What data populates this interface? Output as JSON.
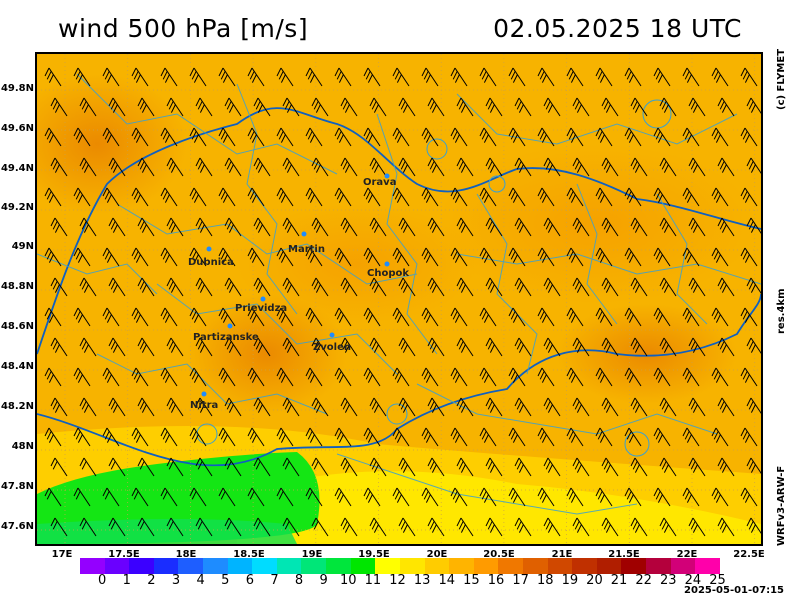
{
  "header": {
    "title": "wind 500 hPa [m/s]",
    "datetime": "02.05.2025   18 UTC"
  },
  "side_labels": {
    "copyright": "(c) FLYMET",
    "resolution": "res.4km",
    "model": "WRFv3-ARW-F"
  },
  "lat_labels": [
    "49.8N",
    "49.6N",
    "49.4N",
    "49.2N",
    "49N",
    "48.8N",
    "48.6N",
    "48.4N",
    "48.2N",
    "48N",
    "47.8N",
    "47.6N"
  ],
  "lon_labels": [
    "17E",
    "17.5E",
    "18E",
    "18.5E",
    "19E",
    "19.5E",
    "20E",
    "20.5E",
    "21E",
    "21.5E",
    "22E",
    "22.5E"
  ],
  "cities": [
    {
      "name": "Orava"
    },
    {
      "name": "Dubnica"
    },
    {
      "name": "Martin"
    },
    {
      "name": "Chopok"
    },
    {
      "name": "Prievidza"
    },
    {
      "name": "Partizanske"
    },
    {
      "name": "Zvolen"
    },
    {
      "name": "Nitra"
    }
  ],
  "legend": {
    "values": [
      "0",
      "1",
      "2",
      "3",
      "4",
      "5",
      "6",
      "7",
      "8",
      "9",
      "10",
      "11",
      "12",
      "13",
      "14",
      "15",
      "16",
      "17",
      "18",
      "19",
      "20",
      "21",
      "22",
      "23",
      "24",
      "25"
    ],
    "colors": [
      "#9400ff",
      "#6a00ff",
      "#3b00ff",
      "#1a2dff",
      "#1e5eff",
      "#1e8cff",
      "#00b4ff",
      "#00dcff",
      "#00e6b4",
      "#00e678",
      "#00e63c",
      "#00e600",
      "#ffff00",
      "#ffe600",
      "#ffcc00",
      "#ffb400",
      "#ff9b00",
      "#f07800",
      "#e06000",
      "#d04800",
      "#c03000",
      "#b01e00",
      "#a00000",
      "#b4003c",
      "#d20078",
      "#ff00aa"
    ]
  },
  "timestamp": "2025-05-01-07:15"
}
